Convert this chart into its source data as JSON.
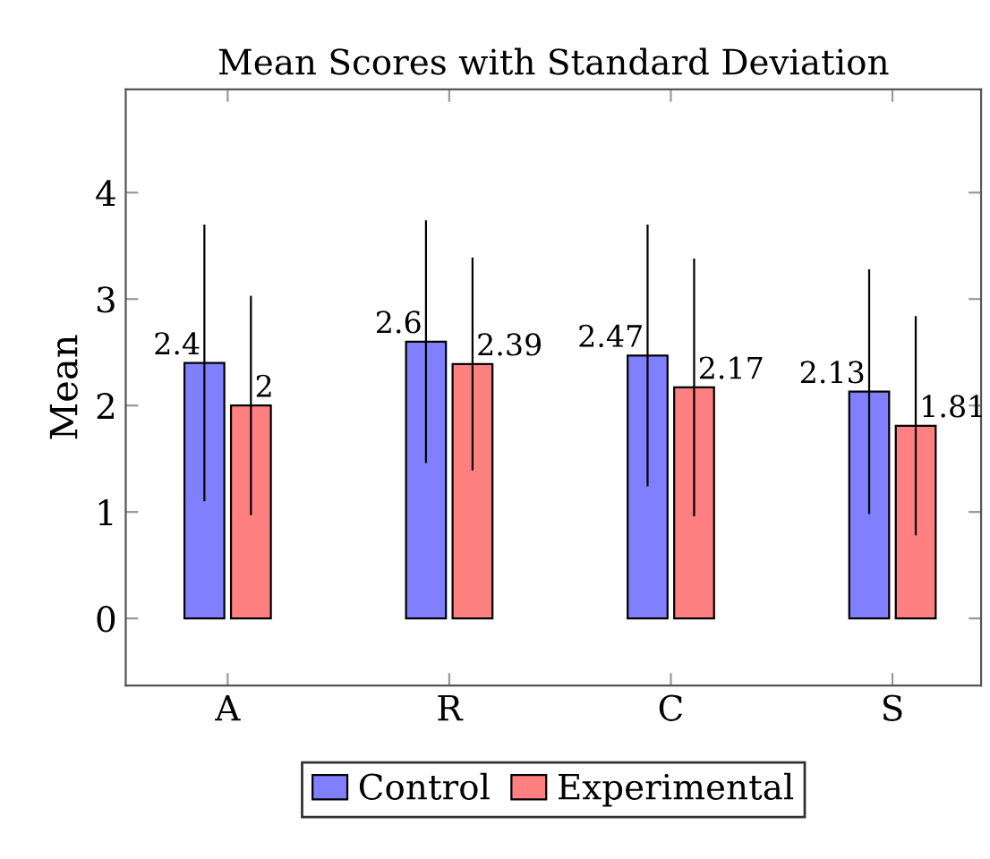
{
  "chart_data": {
    "type": "bar",
    "title": "Mean Scores with Standard Deviation",
    "ylabel": "Mean",
    "categories": [
      "A",
      "R",
      "C",
      "S"
    ],
    "series": [
      {
        "name": "Control",
        "color": "#8080ff",
        "values": [
          2.4,
          2.6,
          2.47,
          2.13
        ],
        "errors": [
          1.3,
          1.14,
          1.23,
          1.15
        ],
        "value_labels": [
          "2.4",
          "2.6",
          "2.47",
          "2.13"
        ]
      },
      {
        "name": "Experimental",
        "color": "#ff8080",
        "values": [
          2,
          2.39,
          2.17,
          1.81
        ],
        "errors": [
          1.03,
          1.0,
          1.21,
          1.03
        ],
        "value_labels": [
          "2",
          "2.39",
          "2.17",
          "1.81"
        ]
      }
    ],
    "ylim": [
      -0.63,
      4.97
    ],
    "yticks": [
      0,
      1,
      2,
      3,
      4
    ],
    "grid": false,
    "legend": "bottom"
  }
}
